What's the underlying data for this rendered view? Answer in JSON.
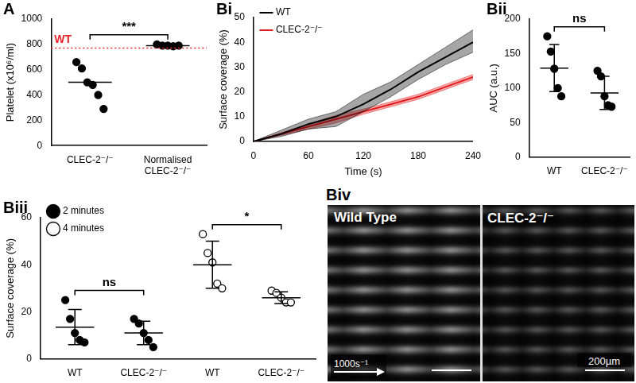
{
  "chart_data": [
    {
      "type": "dot",
      "title": "A",
      "y_label": "Platelet (x10⁶/ml)",
      "categories": [
        "CLEC-2⁻/⁻",
        "Normalised CLEC-2⁻/⁻"
      ],
      "series": [
        {
          "color": "#000000",
          "marker": "filled",
          "values": [
            [
              660,
              610,
              500,
              480,
              400,
              290
            ],
            [
              800,
              790,
              790,
              785,
              790
            ]
          ],
          "center": [
            500,
            790
          ]
        }
      ],
      "ylim": [
        0,
        1000
      ],
      "yticks": [
        0,
        200,
        400,
        600,
        800,
        1000
      ],
      "grid": false,
      "reference_line": {
        "value": 770,
        "label": "WT",
        "color": "#e8242a",
        "line_style": "dotted"
      },
      "brackets": [
        {
          "from": 0,
          "to": 1,
          "text": "***"
        }
      ]
    },
    {
      "type": "line",
      "title": "Bi",
      "x_label": "Time (s)",
      "y_label": "Surface coverage (%)",
      "x": [
        0,
        30,
        60,
        90,
        120,
        150,
        180,
        210,
        240
      ],
      "series": [
        {
          "name": "WT",
          "color": "#000000",
          "values": [
            0,
            3,
            7,
            10,
            15,
            21,
            28,
            34,
            40
          ],
          "lower": [
            0,
            2,
            5,
            6,
            12,
            18,
            25,
            31,
            36
          ],
          "upper": [
            0,
            4.5,
            9,
            12,
            19,
            24,
            31,
            38,
            45
          ]
        },
        {
          "name": "CLEC-2⁻/⁻",
          "color": "#e31a1c",
          "values": [
            0,
            3,
            6,
            9,
            12,
            15,
            18,
            22,
            26
          ],
          "lower": [
            0,
            2.5,
            5,
            7.5,
            11,
            14,
            17,
            21,
            25
          ],
          "upper": [
            0,
            3.5,
            7,
            10.5,
            13,
            16,
            19,
            23,
            27
          ]
        }
      ],
      "xlim": [
        0,
        240
      ],
      "xticks": [
        0,
        60,
        120,
        180,
        240
      ],
      "ylim": [
        0,
        50
      ],
      "yticks": [
        0,
        10,
        20,
        30,
        40,
        50
      ],
      "grid": false,
      "legend": "top-left"
    },
    {
      "type": "dot",
      "title": "Bii",
      "y_label": "AUC (a.u.)",
      "categories": [
        "WT",
        "CLEC-2⁻/⁻"
      ],
      "series": [
        {
          "color": "#000000",
          "marker": "filled",
          "values": [
            [
              175,
              153,
              128,
              100,
              88
            ],
            [
              125,
              117,
              88,
              75,
              73
            ]
          ],
          "center": [
            129,
            93
          ],
          "error": [
            34,
            24
          ]
        }
      ],
      "ylim": [
        0,
        200
      ],
      "yticks": [
        0,
        50,
        100,
        150,
        200
      ],
      "grid": false,
      "brackets": [
        {
          "from": 0,
          "to": 1,
          "text": "ns"
        }
      ]
    },
    {
      "type": "dot",
      "title": "Biii",
      "y_label": "Surface coverage (%)",
      "categories": [
        "WT",
        "CLEC-2⁻/⁻",
        "WT",
        "CLEC-2⁻/⁻"
      ],
      "series": [
        {
          "name": "2 minutes",
          "color": "#000000",
          "marker": "filled",
          "values": [
            [
              25,
              17,
              11,
              8,
              7
            ],
            [
              17,
              15,
              11,
              8,
              5
            ],
            null,
            null
          ],
          "center": [
            13.5,
            11,
            null,
            null
          ],
          "error": [
            7.5,
            5,
            null,
            null
          ]
        },
        {
          "name": "4 minutes",
          "color": "#000000",
          "marker": "open",
          "values": [
            null,
            null,
            [
              53,
              45,
              41,
              32,
              30
            ],
            [
              29,
              28,
              26,
              24,
              24
            ]
          ],
          "center": [
            null,
            null,
            40,
            26
          ],
          "error": [
            null,
            null,
            10,
            2.5
          ]
        }
      ],
      "ylim": [
        0,
        60
      ],
      "yticks": [
        0,
        20,
        40,
        60
      ],
      "grid": false,
      "legend": "top-left",
      "brackets": [
        {
          "from": 0,
          "to": 1,
          "text": "ns"
        },
        {
          "from": 2,
          "to": 3,
          "text": "*"
        }
      ]
    }
  ],
  "image_panel": {
    "title": "Biv",
    "labels": [
      "Wild Type",
      "CLEC-2⁻/⁻"
    ],
    "flow": "1000s⁻¹",
    "scale_bar": "200µm"
  }
}
